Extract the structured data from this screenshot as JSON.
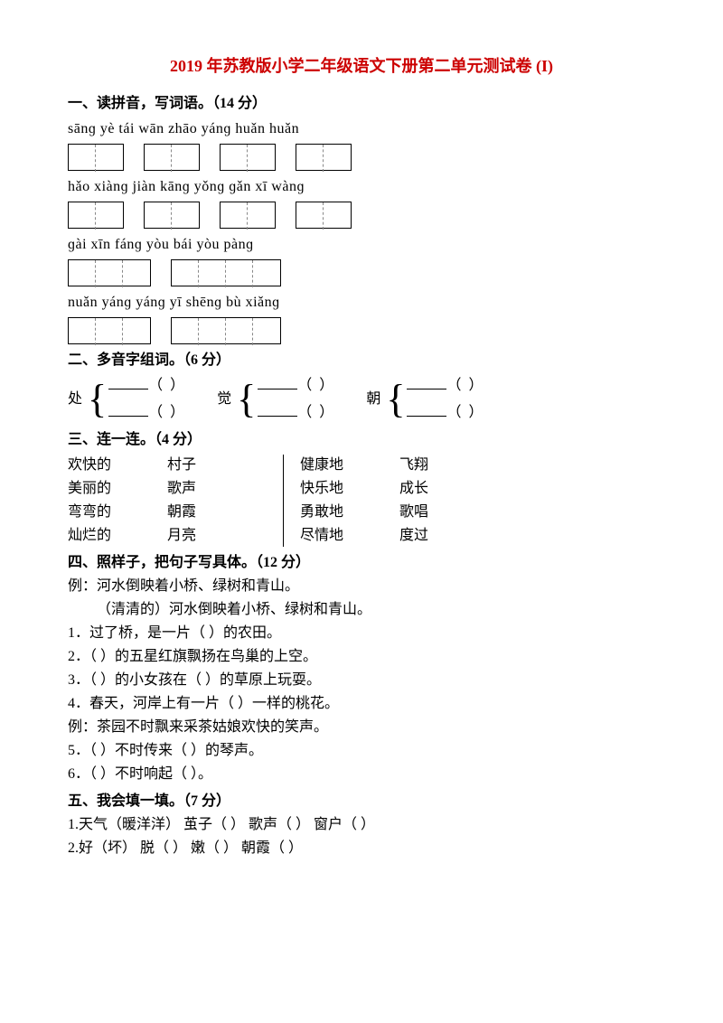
{
  "title_color": "#cc0000",
  "title": "2019 年苏教版小学二年级语文下册第二单元测试卷 (I)",
  "section1": {
    "heading": "一、读拼音，写词语。（14 分）",
    "rows": [
      {
        "pinyin": "sānɡ  yè    tái wān    zhāo yánɡ   huǎn  huǎn",
        "groups": [
          2,
          2,
          2,
          2
        ]
      },
      {
        "pinyin": "hǎo xiànɡ   jiàn kānɡ    yǒnɡ ɡǎn   xī wànɡ",
        "groups": [
          2,
          2,
          2,
          2
        ]
      },
      {
        "pinyin": "ɡài  xīn  fánɡ     yòu bái yòu pànɡ",
        "groups": [
          3,
          4
        ]
      },
      {
        "pinyin": "nuǎn yánɡ yánɡ    yī shēnɡ bù xiǎnɡ",
        "groups": [
          3,
          4
        ]
      }
    ]
  },
  "section2": {
    "heading": "二、多音字组词。（6 分）",
    "chars": [
      "处",
      "觉",
      "朝"
    ]
  },
  "section3": {
    "heading": "三、连一连。（4 分）",
    "colA": [
      "欢快的",
      "美丽的",
      "弯弯的",
      "灿烂的"
    ],
    "colB": [
      "村子",
      "歌声",
      "朝霞",
      "月亮"
    ],
    "colC": [
      "健康地",
      "快乐地",
      "勇敢地",
      "尽情地"
    ],
    "colD": [
      "飞翔",
      "成长",
      "歌唱",
      "度过"
    ]
  },
  "section4": {
    "heading": "四、照样子，把句子写具体。（12 分）",
    "example1a": "例：河水倒映着小桥、绿树和青山。",
    "example1b": "（清清的）河水倒映着小桥、绿树和青山。",
    "q1": "1．过了桥，是一片（        ）的农田。",
    "q2": "2．（        ）的五星红旗飘扬在鸟巢的上空。",
    "q3": "3．（        ）的小女孩在（        ）的草原上玩耍。",
    "q4": "4．春天，河岸上有一片（            ）一样的桃花。",
    "example2": "例：茶园不时飘来采茶姑娘欢快的笑声。",
    "q5": "5．（          ）不时传来（          ）的琴声。",
    "q6": "6．（          ）不时响起（            ）。"
  },
  "section5": {
    "heading": "五、我会填一填。（7 分）",
    "line1": "1.天气（暖洋洋）   茧子（      ）   歌声（        ）   窗户（      ）",
    "line2": "2.好（坏）   脱（     ）   嫩（     ）   朝霞（        ）"
  }
}
